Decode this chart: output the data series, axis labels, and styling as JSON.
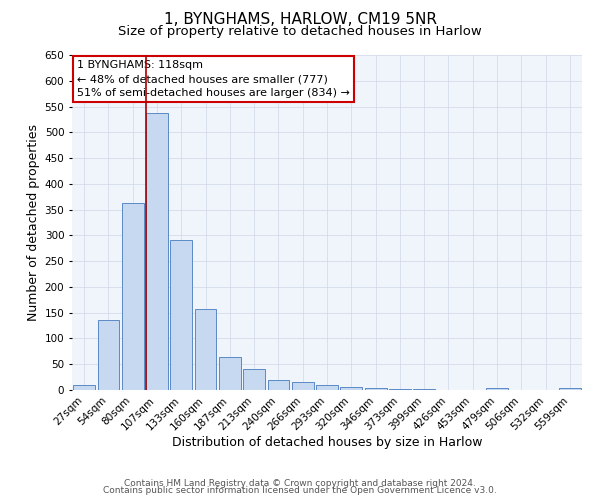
{
  "title": "1, BYNGHAMS, HARLOW, CM19 5NR",
  "subtitle": "Size of property relative to detached houses in Harlow",
  "xlabel": "Distribution of detached houses by size in Harlow",
  "ylabel": "Number of detached properties",
  "categories": [
    "27sqm",
    "54sqm",
    "80sqm",
    "107sqm",
    "133sqm",
    "160sqm",
    "187sqm",
    "213sqm",
    "240sqm",
    "266sqm",
    "293sqm",
    "320sqm",
    "346sqm",
    "373sqm",
    "399sqm",
    "426sqm",
    "453sqm",
    "479sqm",
    "506sqm",
    "532sqm",
    "559sqm"
  ],
  "values": [
    10,
    135,
    362,
    538,
    292,
    158,
    65,
    40,
    20,
    16,
    10,
    5,
    3,
    1,
    1,
    0,
    0,
    4,
    0,
    0,
    4
  ],
  "bar_color": "#c6d9f0",
  "bar_edge_color": "#5a8ac6",
  "vline_x_index": 3,
  "vline_color": "#aa0000",
  "annotation_line1": "1 BYNGHAMS: 118sqm",
  "annotation_line2": "← 48% of detached houses are smaller (777)",
  "annotation_line3": "51% of semi-detached houses are larger (834) →",
  "annotation_box_color": "#ffffff",
  "annotation_box_edge_color": "#cc0000",
  "ylim": [
    0,
    650
  ],
  "yticks": [
    0,
    50,
    100,
    150,
    200,
    250,
    300,
    350,
    400,
    450,
    500,
    550,
    600,
    650
  ],
  "footer1": "Contains HM Land Registry data © Crown copyright and database right 2024.",
  "footer2": "Contains public sector information licensed under the Open Government Licence v3.0.",
  "plot_bg_color": "#f0f4fb",
  "fig_bg_color": "#ffffff",
  "title_fontsize": 11,
  "subtitle_fontsize": 9.5,
  "axis_label_fontsize": 9,
  "tick_fontsize": 7.5,
  "annotation_fontsize": 8,
  "footer_fontsize": 6.5
}
